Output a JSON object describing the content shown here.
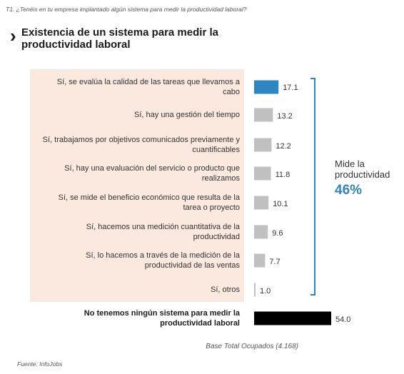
{
  "question": "T1. ¿Tenéis en tu empresa implantado algún sistema para medir la productividad laboral?",
  "title_icon": "chevron-right-icon",
  "chart_data": {
    "type": "bar",
    "orientation": "horizontal",
    "title": "Existencia de un sistema para medir la productividad laboral",
    "categories": [
      "Sí, se evalúa la calidad de las tareas que llevamos a cabo",
      "Sí, hay una gestión del tiempo",
      "Sí, trabajamos por objetivos comunicados previamente y cuantificables",
      "Sí, hay una evaluación del servicio o producto que realizamos",
      "Sí, se mide el beneficio económico que resulta de la tarea o proyecto",
      "Sí, hacemos una medición cuantitativa de la productividad",
      "Sí, lo hacemos a través de la medición de la productividad de las ventas",
      "Sí, otros",
      "No tenemos ningún sistema para medir la productividad laboral"
    ],
    "values": [
      17.1,
      13.2,
      12.2,
      11.8,
      10.1,
      9.6,
      7.7,
      1.0,
      54.0
    ],
    "value_labels": [
      "17.1",
      "13.2",
      "12.2",
      "11.8",
      "10.1",
      "9.6",
      "7.7",
      "1.0",
      "54.0"
    ],
    "bar_colors": [
      "#2e86c1",
      "#c0c0c0",
      "#c0c0c0",
      "#c0c0c0",
      "#c0c0c0",
      "#c0c0c0",
      "#c0c0c0",
      "#c0c0c0",
      "#000000"
    ],
    "bold_categories": [
      8
    ],
    "xlim": [
      0,
      54
    ],
    "bracket": {
      "label": "Mide la productividad",
      "value": "46%",
      "from_index": 0,
      "to_index": 7,
      "color": "#2e86c1"
    },
    "base_note": "Base Total Ocupados (4.168)",
    "source": "Fuente: InfoJobs"
  }
}
